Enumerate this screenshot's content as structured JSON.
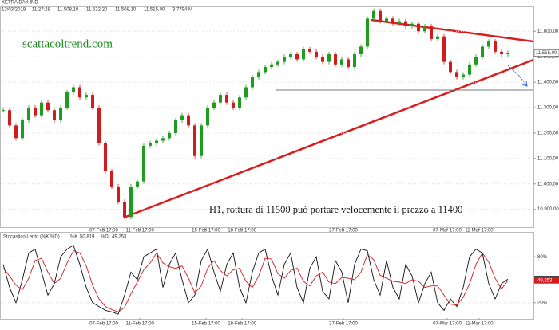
{
  "header": {
    "instrument": "XETRA DAX IND",
    "date": "13/03/2019",
    "time": "11:27:28",
    "open": "11.508,10",
    "high": "11.522,20",
    "low": "11.508,10",
    "close": "11.515,00",
    "volume": "3,7794 M"
  },
  "chart_data": [
    {
      "type": "candlestick",
      "watermark": "scattacoltrend.com",
      "annotation": "H1, rottura di 11500 può portare velocemente il prezzo a 11400",
      "values": [
        11290,
        11230,
        11180,
        11250,
        11300,
        11270,
        11320,
        11290,
        11250,
        11300,
        11360,
        11380,
        11340,
        11350,
        11300,
        11160,
        11050,
        10990,
        10930,
        10870,
        10990,
        11010,
        11150,
        11160,
        11170,
        11180,
        11200,
        11250,
        11270,
        11230,
        11110,
        11230,
        11300,
        11320,
        11350,
        11320,
        11300,
        11340,
        11380,
        11420,
        11440,
        11460,
        11470,
        11480,
        11500,
        11510,
        11490,
        11530,
        11520,
        11500,
        11480,
        11510,
        11470,
        11490,
        11460,
        11510,
        11540,
        11650,
        11680,
        11640,
        11650,
        11630,
        11640,
        11620,
        11630,
        11600,
        11620,
        11570,
        11580,
        11480,
        11440,
        11420,
        11430,
        11470,
        11500,
        11540,
        11560,
        11520,
        11510,
        11515
      ],
      "colors": {
        "up": "#1e9c1e",
        "down": "#d01c1c"
      },
      "last": {
        "value": 11515,
        "label": "11.515,00"
      },
      "ylim": [
        10830,
        11695
      ],
      "yticks": [
        {
          "value": 10900,
          "label": "10.900,00"
        },
        {
          "value": 11000,
          "label": "11.000,00"
        },
        {
          "value": 11100,
          "label": "11.100,00"
        },
        {
          "value": 11200,
          "label": "11.200,00"
        },
        {
          "value": 11300,
          "label": "11.300,00"
        },
        {
          "value": 11400,
          "label": "11.400,00"
        },
        {
          "value": 11500,
          "label": "11.500,00"
        },
        {
          "value": 11600,
          "label": "11.600,00"
        }
      ],
      "xticks": [
        {
          "value": 15.75,
          "label": "07-Feb 17:00"
        },
        {
          "value": 21.4,
          "label": "11-Feb 17:00"
        },
        {
          "value": 31.75,
          "label": "15-Feb 17:00"
        },
        {
          "value": 37.4,
          "label": "18-Feb 17:00"
        },
        {
          "value": 53.25,
          "label": "27-Feb 17:00"
        },
        {
          "value": 69.5,
          "label": "07-Mar 17:00"
        },
        {
          "value": 74.5,
          "label": "11-Mar 17:00"
        }
      ]
    },
    {
      "type": "line",
      "title": "Stocastico Lento (%K %D)",
      "series": [
        {
          "name": "%K",
          "color": "#111111",
          "last": {
            "value": 50.819,
            "label": "50,819"
          },
          "values": [
            70,
            40,
            20,
            50,
            85,
            90,
            60,
            30,
            45,
            80,
            90,
            95,
            70,
            40,
            20,
            15,
            10,
            8,
            5,
            30,
            60,
            50,
            80,
            85,
            90,
            40,
            70,
            85,
            50,
            20,
            30,
            75,
            90,
            60,
            35,
            70,
            85,
            40,
            20,
            60,
            85,
            90,
            55,
            30,
            70,
            85,
            40,
            20,
            65,
            80,
            35,
            25,
            75,
            60,
            20,
            70,
            90,
            88,
            50,
            30,
            75,
            40,
            25,
            70,
            55,
            20,
            45,
            60,
            20,
            10,
            25,
            15,
            40,
            80,
            90,
            85,
            45,
            25,
            45,
            50.819
          ]
        },
        {
          "name": "%D",
          "color": "#d01c1c",
          "last": {
            "value": 49.253,
            "label": "49,253"
          },
          "values": [
            65,
            55,
            43,
            37,
            52,
            75,
            78,
            60,
            45,
            52,
            72,
            88,
            85,
            68,
            43,
            25,
            15,
            11,
            8,
            14,
            32,
            47,
            63,
            72,
            85,
            72,
            67,
            65,
            68,
            52,
            33,
            42,
            65,
            75,
            62,
            55,
            63,
            65,
            48,
            40,
            55,
            78,
            77,
            58,
            52,
            62,
            65,
            48,
            42,
            55,
            60,
            47,
            45,
            53,
            52,
            50,
            60,
            83,
            76,
            56,
            52,
            48,
            47,
            45,
            50,
            48,
            40,
            42,
            42,
            30,
            18,
            17,
            27,
            45,
            70,
            85,
            73,
            52,
            38,
            49.253
          ]
        }
      ],
      "ylim": [
        0,
        100
      ],
      "yticks": [
        {
          "value": 20,
          "label": "20%"
        },
        {
          "value": 80,
          "label": "80%"
        }
      ],
      "xticks": [
        {
          "value": 15.75,
          "label": "07-Feb 17:00"
        },
        {
          "value": 21.4,
          "label": "11-Feb 17:00"
        },
        {
          "value": 31.75,
          "label": "15-Feb 17:00"
        },
        {
          "value": 37.4,
          "label": "18-Feb 17:00"
        },
        {
          "value": 53.25,
          "label": "27-Feb 17:00"
        },
        {
          "value": 69.5,
          "label": "07-Mar 17:00"
        },
        {
          "value": 74.5,
          "label": "11-Mar 17:00"
        }
      ]
    }
  ]
}
